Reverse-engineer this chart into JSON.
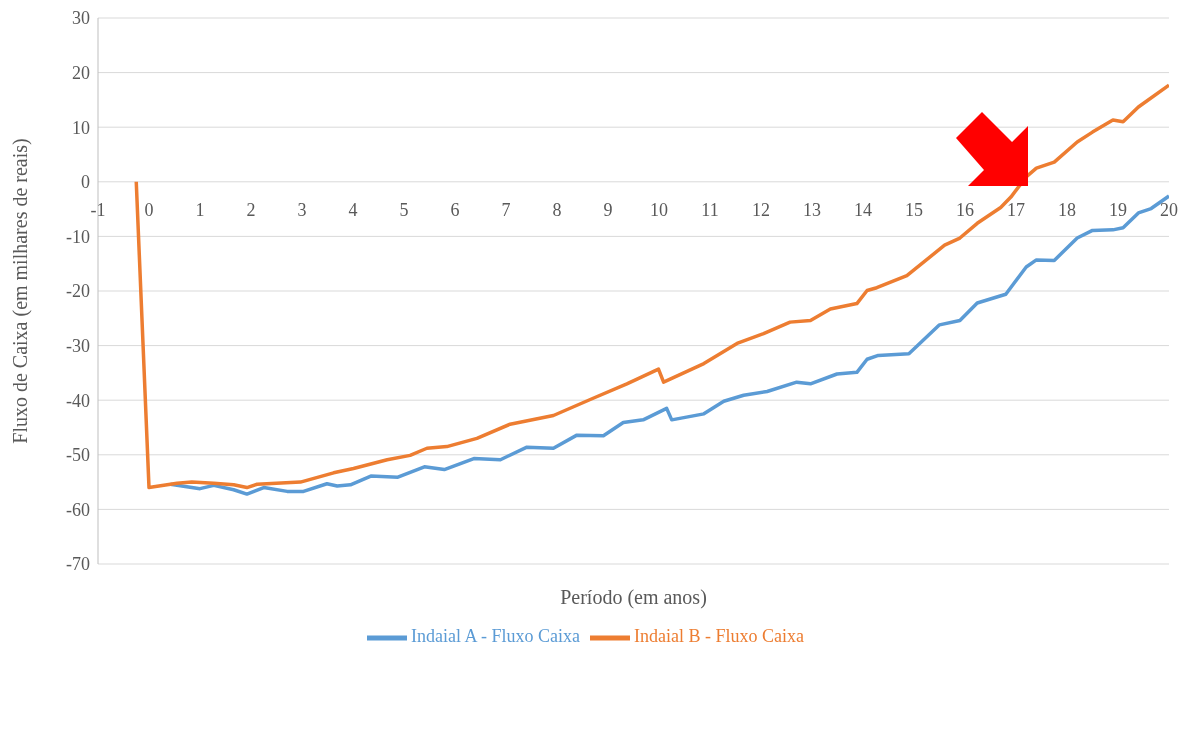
{
  "chart_data": {
    "type": "line",
    "xlabel": "Período (em anos)",
    "ylabel": "Fluxo de Caixa (em milhares de reais)",
    "xlim": [
      -1,
      20
    ],
    "xticks": [
      -1,
      0,
      1,
      2,
      3,
      4,
      5,
      6,
      7,
      8,
      9,
      10,
      11,
      12,
      13,
      14,
      15,
      16,
      17,
      18,
      19,
      20
    ],
    "ylim": [
      -70,
      30
    ],
    "yticks": [
      -70,
      -60,
      -50,
      -40,
      -30,
      -20,
      -10,
      0,
      10,
      20,
      30
    ],
    "grid": "y",
    "legend": "bottom",
    "marker": "none",
    "line_style": "solid",
    "series": [
      {
        "name": "Indaial A  - Fluxo Caixa",
        "color": "#5b9bd5",
        "x": [
          0.42,
          1.0,
          1.27,
          1.66,
          1.92,
          2.25,
          2.71,
          3.03,
          3.49,
          3.69,
          3.95,
          4.35,
          4.88,
          5.4,
          5.79,
          6.37,
          6.89,
          7.41,
          7.93,
          8.39,
          8.91,
          9.3,
          9.69,
          10.15,
          10.25,
          10.88,
          11.27,
          11.66,
          12.12,
          12.7,
          12.97,
          13.49,
          13.88,
          14.08,
          14.3,
          14.9,
          15.5,
          15.9,
          16.24,
          16.8,
          17.2,
          17.4,
          17.75,
          18.2,
          18.5,
          18.9,
          19.1,
          19.4,
          19.65,
          20
        ],
        "values": [
          -55.4,
          -56.2,
          -55.6,
          -56.4,
          -57.2,
          -56,
          -56.7,
          -56.7,
          -55.3,
          -55.7,
          -55.5,
          -53.9,
          -54.1,
          -52.2,
          -52.7,
          -50.7,
          -50.9,
          -48.6,
          -48.8,
          -46.4,
          -46.5,
          -44.1,
          -43.6,
          -41.5,
          -43.6,
          -42.5,
          -40.2,
          -39.1,
          -38.4,
          -36.7,
          -37,
          -35.2,
          -34.9,
          -32.5,
          -31.8,
          -31.5,
          -26.2,
          -25.4,
          -22.2,
          -20.6,
          -15.6,
          -14.3,
          -14.4,
          -10.3,
          -8.9,
          -8.8,
          -8.4,
          -5.7,
          -4.9,
          -2.6
        ]
      },
      {
        "name": "Indaial B  - Fluxo Caixa",
        "color": "#ed7d31",
        "x": [
          -0.25,
          0,
          0.55,
          0.84,
          1.27,
          1.66,
          1.92,
          2.12,
          2.97,
          3.62,
          4.01,
          4.67,
          5.12,
          5.45,
          5.84,
          6.43,
          7.08,
          7.93,
          8.72,
          9.37,
          9.99,
          10.09,
          10.88,
          11.53,
          12.05,
          12.57,
          12.97,
          13.36,
          13.88,
          14.08,
          14.27,
          14.86,
          15.6,
          15.9,
          16.24,
          16.7,
          16.9,
          17.2,
          17.4,
          17.75,
          18.2,
          18.5,
          18.9,
          19.1,
          19.4,
          20
        ],
        "values": [
          0,
          -56,
          -55.2,
          -55,
          -55.2,
          -55.5,
          -56,
          -55.4,
          -55,
          -53.3,
          -52.5,
          -50.9,
          -50.1,
          -48.8,
          -48.5,
          -47,
          -44.4,
          -42.8,
          -39.6,
          -37,
          -34.3,
          -36.7,
          -33.3,
          -29.6,
          -27.8,
          -25.7,
          -25.4,
          -23.3,
          -22.3,
          -19.9,
          -19.4,
          -17.2,
          -11.6,
          -10.3,
          -7.6,
          -4.7,
          -2.8,
          0.9,
          2.5,
          3.6,
          7.3,
          9.1,
          11.3,
          11,
          13.7,
          17.7
        ]
      }
    ]
  }
}
